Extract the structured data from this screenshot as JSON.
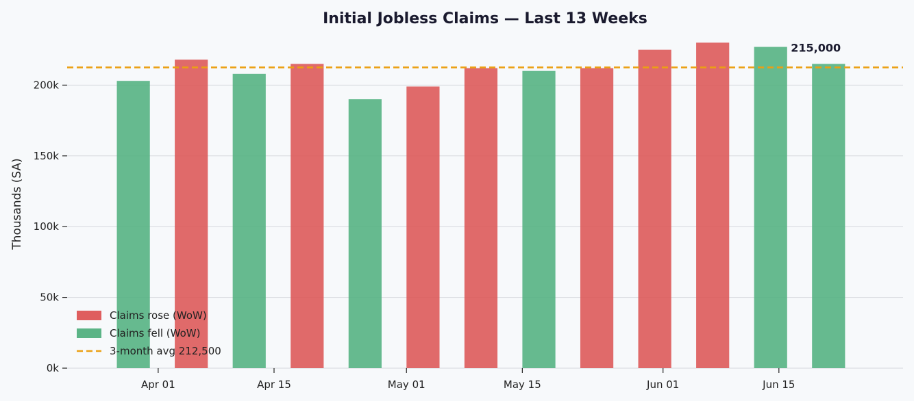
{
  "chart_data": {
    "type": "bar",
    "title": "Initial Jobless Claims — Last 13 Weeks",
    "xlabel": "",
    "ylabel": "Thousands (SA)",
    "ylim": [
      0,
      235000
    ],
    "xlim": [
      "2025-03-21",
      "2025-06-30"
    ],
    "grid": "horizontal",
    "legend_position": "lower-left",
    "y_ticks": [
      {
        "value": 0,
        "label": "0k"
      },
      {
        "value": 50000,
        "label": "50k"
      },
      {
        "value": 100000,
        "label": "100k"
      },
      {
        "value": 150000,
        "label": "150k"
      },
      {
        "value": 200000,
        "label": "200k"
      }
    ],
    "x_ticks": [
      {
        "date": "2025-04-01",
        "label": "Apr 01"
      },
      {
        "date": "2025-04-15",
        "label": "Apr 15"
      },
      {
        "date": "2025-05-01",
        "label": "May 01"
      },
      {
        "date": "2025-05-15",
        "label": "May 15"
      },
      {
        "date": "2025-06-01",
        "label": "Jun 01"
      },
      {
        "date": "2025-06-15",
        "label": "Jun 15"
      }
    ],
    "weeks": [
      {
        "date": "2025-03-29",
        "value": 203000,
        "change": "fell"
      },
      {
        "date": "2025-04-05",
        "value": 218000,
        "change": "rose"
      },
      {
        "date": "2025-04-12",
        "value": 208000,
        "change": "fell"
      },
      {
        "date": "2025-04-19",
        "value": 215000,
        "change": "rose"
      },
      {
        "date": "2025-04-26",
        "value": 190000,
        "change": "fell"
      },
      {
        "date": "2025-05-03",
        "value": 199000,
        "change": "rose"
      },
      {
        "date": "2025-05-10",
        "value": 212000,
        "change": "rose"
      },
      {
        "date": "2025-05-17",
        "value": 210000,
        "change": "fell"
      },
      {
        "date": "2025-05-24",
        "value": 212000,
        "change": "rose"
      },
      {
        "date": "2025-05-31",
        "value": 225000,
        "change": "rose"
      },
      {
        "date": "2025-06-07",
        "value": 230000,
        "change": "rose"
      },
      {
        "date": "2025-06-14",
        "value": 227000,
        "change": "fell"
      },
      {
        "date": "2025-06-21",
        "value": 215000,
        "change": "fell"
      }
    ],
    "average": {
      "value": 212500,
      "label": "3-month avg  212,500"
    },
    "annotation": {
      "text": "215,000",
      "value": 215000
    },
    "legend": [
      {
        "key": "rose",
        "label": "Claims rose (WoW)",
        "kind": "box"
      },
      {
        "key": "fell",
        "label": "Claims fell (WoW)",
        "kind": "box"
      },
      {
        "key": "avg",
        "label": "3-month avg  212,500",
        "kind": "dash"
      }
    ],
    "colors": {
      "rose": "#dd5555",
      "fell": "#52b080",
      "avg": "#eba013",
      "grid": "#d5d8dc",
      "background": "#f7f9fb"
    }
  }
}
